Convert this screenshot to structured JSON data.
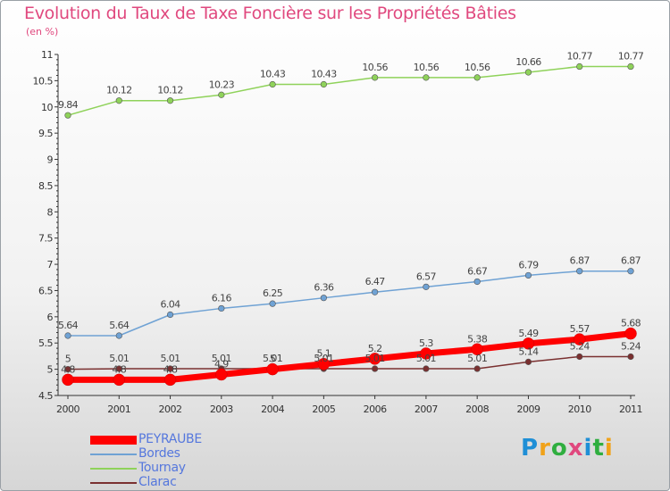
{
  "title": "Evolution du Taux de Taxe Foncière sur les Propriétés Bâties",
  "subtitle": "(en %)",
  "logo": {
    "letters": [
      "P",
      "r",
      "o",
      "x",
      "i",
      "t",
      "i"
    ],
    "colors": [
      "#1f8fd6",
      "#f0a21a",
      "#2fae3f",
      "#e0487e",
      "#1f8fd6",
      "#2fae3f",
      "#f0a21a"
    ]
  },
  "chart_data": {
    "type": "line",
    "x": [
      "2000",
      "2001",
      "2002",
      "2003",
      "2004",
      "2005",
      "2006",
      "2007",
      "2008",
      "2009",
      "2010",
      "2011"
    ],
    "ylim": [
      4.5,
      11
    ],
    "yticks": [
      "4.5",
      "5",
      "5.5",
      "6",
      "6.5",
      "7",
      "7.5",
      "8",
      "8.5",
      "9",
      "9.5",
      "10",
      "10.5",
      "11"
    ],
    "grid": false,
    "legend": "bottom-left",
    "series": [
      {
        "name": "PEYRAUBE",
        "color": "#ff0000",
        "values": [
          4.8,
          4.8,
          4.8,
          4.9,
          5,
          5.1,
          5.2,
          5.3,
          5.38,
          5.49,
          5.57,
          5.68
        ],
        "labels": [
          "4.8",
          "4.8",
          "4.8",
          "4.9",
          "5",
          "5.1",
          "5.2",
          "5.3",
          "5.38",
          "5.49",
          "5.57",
          "5.68"
        ]
      },
      {
        "name": "Bordes",
        "color": "#6fa2d4",
        "values": [
          5.64,
          5.64,
          6.04,
          6.16,
          6.25,
          6.36,
          6.47,
          6.57,
          6.67,
          6.79,
          6.87,
          6.87
        ],
        "labels": [
          "5.64",
          "5.64",
          "6.04",
          "6.16",
          "6.25",
          "6.36",
          "6.47",
          "6.57",
          "6.67",
          "6.79",
          "6.87",
          "6.87"
        ]
      },
      {
        "name": "Tournay",
        "color": "#8fd25a",
        "values": [
          9.84,
          10.12,
          10.12,
          10.23,
          10.43,
          10.43,
          10.56,
          10.56,
          10.56,
          10.66,
          10.77,
          10.77
        ],
        "labels": [
          "9.84",
          "10.12",
          "10.12",
          "10.23",
          "10.43",
          "10.43",
          "10.56",
          "10.56",
          "10.56",
          "10.66",
          "10.77",
          "10.77"
        ]
      },
      {
        "name": "Clarac",
        "color": "#7a3030",
        "values": [
          5,
          5.01,
          5.01,
          5.01,
          5.01,
          5.01,
          5.01,
          5.01,
          5.01,
          5.14,
          5.24,
          5.24
        ],
        "labels": [
          "5",
          "5.01",
          "5.01",
          "5.01",
          "5.01",
          "5.01",
          "5.01",
          "5.01",
          "5.01",
          "5.14",
          "5.24",
          "5.24"
        ]
      }
    ]
  }
}
